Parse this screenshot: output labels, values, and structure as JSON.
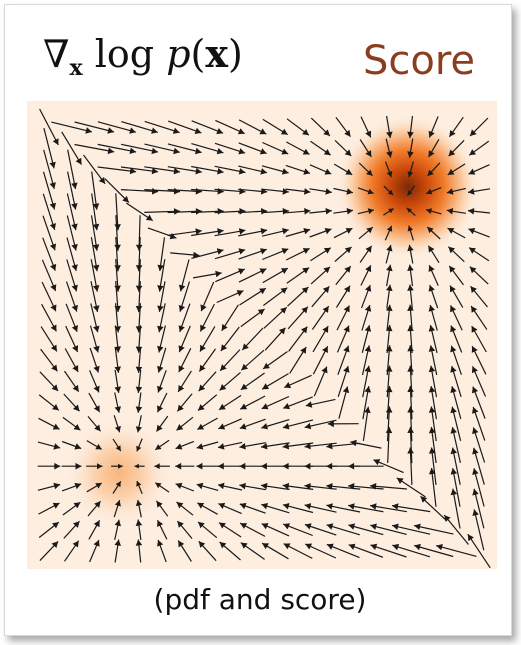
{
  "header": {
    "formula_nabla": "∇",
    "formula_sub": "x",
    "formula_log": " log ",
    "formula_p": "p",
    "formula_open": "(",
    "formula_x": "x",
    "formula_close": ")",
    "title": "Score"
  },
  "caption": "(pdf and score)",
  "colors": {
    "background": "#fdeee0",
    "peak_dark": "#8a2f05",
    "peak_mid": "#e8650f",
    "weak_peak": "#f9b47a",
    "arrow": "#1a1a1a",
    "title": "#8a3d1f"
  },
  "chart_data": {
    "type": "vector-field",
    "grid": {
      "rows": 21,
      "cols": 20,
      "xlim": [
        0,
        1
      ],
      "ylim": [
        0,
        1
      ]
    },
    "modes": [
      {
        "x": 0.82,
        "y": 0.82,
        "sigma": 0.075,
        "weight": 0.8
      },
      {
        "x": 0.19,
        "y": 0.2,
        "sigma": 0.075,
        "weight": 0.2
      }
    ]
  }
}
